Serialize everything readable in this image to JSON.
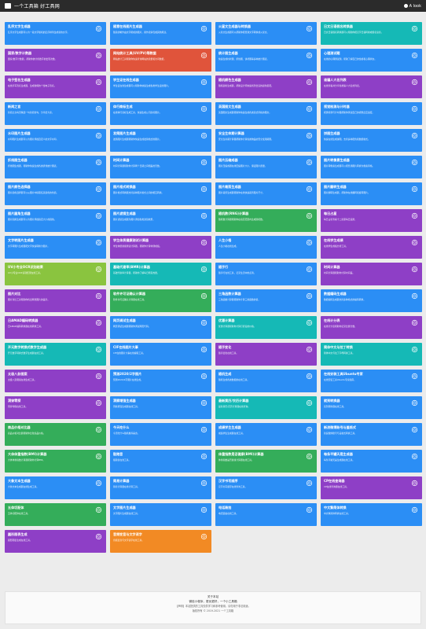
{
  "header": {
    "title": "一个工具箱 好工具网",
    "login": "A look"
  },
  "colors": {
    "blue": "#2b8ef5",
    "cyan": "#15b9b6",
    "purple": "#8e3fc6",
    "green": "#34ad5a",
    "red": "#e0543b",
    "lime": "#8ac43f",
    "orange": "#f28a24"
  },
  "cards": [
    {
      "title": "乱序文字生成器",
      "desc": "乱序文字生成器可以为一段文字随机的乱序排列生成新的文字。",
      "color": "blue",
      "icon": "shuffle-icon"
    },
    {
      "title": "随意在线图片生成器",
      "desc": "随意的制作由文字组成的图片，用作表情包或其他用途。",
      "color": "blue",
      "icon": "image-icon"
    },
    {
      "title": "火星文生成器与转换器",
      "desc": "火星文生成器可以帮助你把普通文字转换成火星文。",
      "color": "blue",
      "icon": "planet-icon"
    },
    {
      "title": "日文日语假名转换器",
      "desc": "日文日语假名转换器可以帮助你把汉字日语转换成假名读音。",
      "color": "cyan",
      "icon": "text-icon"
    },
    {
      "title": "国家/数字计数器",
      "desc": "国家/数字计数器，帮助你统计各数字的出现次数。",
      "color": "purple",
      "icon": "counter-icon"
    },
    {
      "title": "网站统计工具(UV/PV)等数据",
      "desc": "网站统计工具帮助你快速查询网站的流量和访问数据。",
      "color": "red",
      "icon": "chart-icon"
    },
    {
      "title": "统计图生成器",
      "desc": "快速生成柱状图、折线图、饼状图等多种统计图表。",
      "color": "blue",
      "icon": "chart-icon"
    },
    {
      "title": "心理测试题",
      "desc": "在线的心理测试题，帮助了解自己的性格和心理状态。",
      "color": "blue",
      "icon": "heart-icon"
    },
    {
      "title": "电子签名生成器",
      "desc": "在线手写签名生成器，生成独特的个性电子签名。",
      "color": "purple",
      "icon": "pen-icon"
    },
    {
      "title": "学生证在线生成器",
      "desc": "学生证在线生成器可以帮助你快速生成各类学生证的图片。",
      "color": "blue",
      "icon": "card-icon"
    },
    {
      "title": "随机颜色生成器",
      "desc": "随机颜色生成器，帮助设计师快速找到合适的颜色搭配。",
      "color": "purple",
      "icon": "palette-icon"
    },
    {
      "title": "谁骗人大名列表",
      "desc": "在线查看并分享各类骗人大名的列表。",
      "color": "purple",
      "icon": "list-icon"
    },
    {
      "title": "新闻之言",
      "desc": "新闻之言每天精选一句新闻金句，分享给大家。",
      "color": "blue",
      "icon": "quote-icon"
    },
    {
      "title": "体行商标生成",
      "desc": "在线体行商标生成工具，快速生成公司商标图片。",
      "color": "blue",
      "icon": "tag-icon"
    },
    {
      "title": "英国图文生成器",
      "desc": "英国图文生成器帮助你快速生成各类英式风格的图文。",
      "color": "blue",
      "icon": "flag-icon"
    },
    {
      "title": "视觉检测与计时器",
      "desc": "视觉检测与计时器帮助你测试自己的视觉反应速度。",
      "color": "blue",
      "icon": "eye-icon"
    },
    {
      "title": "水印图片生成器",
      "desc": "水印图片生成器可以为图片添加自定义的文字水印。",
      "color": "blue",
      "icon": "drop-icon"
    },
    {
      "title": "发简图片生成器",
      "desc": "发简图片生成器帮助你快速生成发简格式的图片。",
      "color": "blue",
      "icon": "wifi-icon"
    },
    {
      "title": "安全生命期计算器",
      "desc": "安全生命期计算器帮助你计算各类物品的安全使用期限。",
      "color": "blue",
      "icon": "shield-icon"
    },
    {
      "title": "饼图生成器",
      "desc": "快速在线生成饼图，支持多种配色和数据格式。",
      "color": "blue",
      "icon": "pie-icon"
    },
    {
      "title": "折线图生成器",
      "desc": "折线图生成器，帮助你快速生成各类折线统计图表。",
      "color": "blue",
      "icon": "line-icon"
    },
    {
      "title": "时间计算器",
      "desc": "时间计算器帮助你计算两个日期之间相差的天数。",
      "color": "blue",
      "icon": "clock-icon"
    },
    {
      "title": "图片压缩成器",
      "desc": "图片压缩成器在线压缩图片大小，保证图片质量。",
      "color": "blue",
      "icon": "image-icon"
    },
    {
      "title": "图片转像素生成器",
      "desc": "图片转像素生成器可以把普通图片转换为像素风格。",
      "color": "blue",
      "icon": "grid-icon"
    },
    {
      "title": "图片颜色选择器",
      "desc": "图片颜色选择器可以从图片中提取任意颜色的色值。",
      "color": "blue",
      "icon": "picker-icon"
    },
    {
      "title": "图片格式转换器",
      "desc": "图片格式转换器支持多种图片格式之间的相互转换。",
      "color": "blue",
      "icon": "convert-icon"
    },
    {
      "title": "图片裁剪生成器",
      "desc": "图片裁剪生成器帮助你在线快速裁剪图片尺寸。",
      "color": "blue",
      "icon": "crop-icon"
    },
    {
      "title": "图片翻转生成器",
      "desc": "图片翻转生成器，帮助你在线翻转和旋转图片。",
      "color": "blue",
      "icon": "flip-icon"
    },
    {
      "title": "图片圆角生成器",
      "desc": "图片圆角生成器可以为图片添加指定大小的圆角。",
      "color": "blue",
      "icon": "round-icon"
    },
    {
      "title": "图片滤镜生成器",
      "desc": "图片滤镜生成器为图片添加各类滤镜效果。",
      "color": "blue",
      "icon": "filter-icon"
    },
    {
      "title": "随机数(RNG)计算器",
      "desc": "随机数计算器帮助你在指定范围内生成随机数。",
      "color": "green",
      "icon": "dice-icon"
    },
    {
      "title": "每日占星",
      "desc": "每日占星查看十二星座每日运势。",
      "color": "purple",
      "icon": "star-icon"
    },
    {
      "title": "文字转图片生成器",
      "desc": "文字转图片生成器把文字快速转换为图片。",
      "color": "blue",
      "icon": "text-icon"
    },
    {
      "title": "学生体质健康测试计算器",
      "desc": "学生体质健康测试计算器，帮助你计算体测成绩。",
      "color": "purple",
      "icon": "run-icon"
    },
    {
      "title": "人生小格",
      "desc": "人生小格在线生成。",
      "color": "blue",
      "icon": "grid-icon"
    },
    {
      "title": "在线学生成绩",
      "desc": "在线学生成绩分析工具。",
      "color": "purple",
      "icon": "book-icon"
    },
    {
      "title": "UV小专业OCR识别结果",
      "desc": "UV小专业OCR识别结果在线工具。",
      "color": "lime",
      "icon": "scan-icon"
    },
    {
      "title": "基础代谢率(BMR)计算器",
      "desc": "基础代谢率计算器，帮助你了解每日所需热量。",
      "color": "cyan",
      "icon": "flame-icon"
    },
    {
      "title": "随手行",
      "desc": "随手行在线工具，记录生活中的点滴。",
      "color": "blue",
      "icon": "walk-icon"
    },
    {
      "title": "时间计算器",
      "desc": "时间计算器帮助你计算时间差。",
      "color": "purple",
      "icon": "clock-icon"
    },
    {
      "title": "图片对比",
      "desc": "图片对比工具帮助你找出两张图片的差异。",
      "color": "purple",
      "icon": "compare-icon"
    },
    {
      "title": "软件许可证确认计算器",
      "desc": "软件许可证确认计算器在线工具。",
      "color": "green",
      "icon": "key-icon"
    },
    {
      "title": "三角函数计算器",
      "desc": "三角函数计算器帮助你计算三角函数的值。",
      "color": "blue",
      "icon": "triangle-icon"
    },
    {
      "title": "数据编码生成器",
      "desc": "数据编码生成器支持多种格式的编码转换。",
      "color": "blue",
      "icon": "code-icon"
    },
    {
      "title": "日AMAD编码转换器",
      "desc": "日AMAD编码转换器在线转换工具。",
      "color": "purple",
      "icon": "convert-icon"
    },
    {
      "title": "网页调试生成器",
      "desc": "网页调试生成器帮助你调试网页代码。",
      "color": "blue",
      "icon": "bug-icon"
    },
    {
      "title": "优惠计算器",
      "desc": "优惠计算器帮助你计算打折后的价格。",
      "color": "cyan",
      "icon": "tag-icon"
    },
    {
      "title": "在线计分表",
      "desc": "在线计分表帮助你记录比赛分数。",
      "color": "purple",
      "icon": "score-icon"
    },
    {
      "title": "开元数字转换式数字生成器",
      "desc": "开元数字转换式数字生成器在线工具。",
      "color": "cyan",
      "icon": "number-icon"
    },
    {
      "title": "CIF在线图片大事",
      "desc": "CIF在线图片大事在线编辑工具。",
      "color": "blue",
      "icon": "image-icon"
    },
    {
      "title": "随手变化",
      "desc": "随手变化在线工具。",
      "color": "purple",
      "icon": "magic-icon"
    },
    {
      "title": "简体中文与拉丁转换",
      "desc": "简体中文与拉丁字母转换工具。",
      "color": "cyan",
      "icon": "text-icon"
    },
    {
      "title": "太极八卦图案",
      "desc": "太极八卦图案在线生成工具。",
      "color": "purple",
      "icon": "yinyang-icon"
    },
    {
      "title": "预测2020/2字图片",
      "desc": "预测2020/2字图片在线生成。",
      "color": "blue",
      "icon": "crystal-icon"
    },
    {
      "title": "随机生成",
      "desc": "随机生成各类数据的在线工具。",
      "color": "blue",
      "icon": "dice-icon"
    },
    {
      "title": "在线安装工具Ubuntu专家",
      "desc": "在线安装工具Ubuntu专家指南。",
      "color": "blue",
      "icon": "terminal-icon"
    },
    {
      "title": "洞穿零探",
      "desc": "洞穿零探在线工具。",
      "color": "purple",
      "icon": "search-icon"
    },
    {
      "title": "洞察增强生成器",
      "desc": "洞察增强生成器在线工具。",
      "color": "blue",
      "icon": "chart-icon"
    },
    {
      "title": "最新黄历/农历计算器",
      "desc": "最新黄历/农历计算器在线查询。",
      "color": "cyan",
      "icon": "calendar-icon"
    },
    {
      "title": "就到转换器",
      "desc": "就到转换器在线工具。",
      "color": "blue",
      "icon": "convert-icon"
    },
    {
      "title": "商品价格对比器",
      "desc": "商品价格对比器帮助你比较商品价格。",
      "color": "green",
      "icon": "cart-icon"
    },
    {
      "title": "今天吃什么",
      "desc": "今天吃什么随机推荐美食。",
      "color": "blue",
      "icon": "food-icon"
    },
    {
      "title": "成绩学生生成器",
      "desc": "成绩学生生成器在线工具。",
      "color": "blue",
      "icon": "book-icon"
    },
    {
      "title": "新浪微博账号与盖格式",
      "desc": "新浪微博账号与盖格式转换工具。",
      "color": "blue",
      "icon": "weibo-icon"
    },
    {
      "title": "大体体重指数(BMI)计算器",
      "desc": "大体体重指数计算器帮助你计算BMI。",
      "color": "green",
      "icon": "scale-icon"
    },
    {
      "title": "骰跑音",
      "desc": "骰跑音在线工具。",
      "color": "blue",
      "icon": "dice-icon"
    },
    {
      "title": "体重指数是否健康(BMI)计算器",
      "desc": "体重指数是否健康计算器在线工具。",
      "color": "green",
      "icon": "scale-icon"
    },
    {
      "title": "每条平罐天是生成器",
      "desc": "每条平罐天是生成器在线工具。",
      "color": "blue",
      "icon": "sun-icon"
    },
    {
      "title": "大象文本生成器",
      "desc": "大象文本生成器在线生成工具。",
      "color": "blue",
      "icon": "text-icon"
    },
    {
      "title": "简易计算器",
      "desc": "简易计算器在线计算工具。",
      "color": "blue",
      "icon": "calculator-icon"
    },
    {
      "title": "汉字书写顺序",
      "desc": "汉字书写顺序在线查询工具。",
      "color": "blue",
      "icon": "pen-icon"
    },
    {
      "title": "CP在线查询器",
      "desc": "CP在线查询器在线工具。",
      "color": "purple",
      "icon": "heart-icon"
    },
    {
      "title": "五体切配体",
      "desc": "五体切配体在线工具。",
      "color": "green",
      "icon": "shape-icon"
    },
    {
      "title": "文字图片生成器",
      "desc": "文字图片生成器在线工具。",
      "color": "blue",
      "icon": "image-icon"
    },
    {
      "title": "电话装拍",
      "desc": "电话装拍在线工具。",
      "color": "blue",
      "icon": "phone-icon"
    },
    {
      "title": "中文繁简体转换",
      "desc": "中文繁简体转换在线工具。",
      "color": "blue",
      "icon": "text-icon"
    },
    {
      "title": "圆形图表生成",
      "desc": "圆形图表生成在线工具。",
      "color": "purple",
      "icon": "pie-icon"
    },
    {
      "title": "音频变音与文字读字",
      "desc": "音频变音与文字读字在线工具。",
      "color": "orange",
      "icon": "audio-icon"
    }
  ],
  "footer": {
    "about": "关于本站",
    "promo": "微信小程序，更优更好，一个小工具箱",
    "notice": "【声明】本站提供的工具仅供学习和参考使用，请勿用于非法用途。",
    "copyright": "版权所有 © 2019-2021 一个工具箱"
  }
}
